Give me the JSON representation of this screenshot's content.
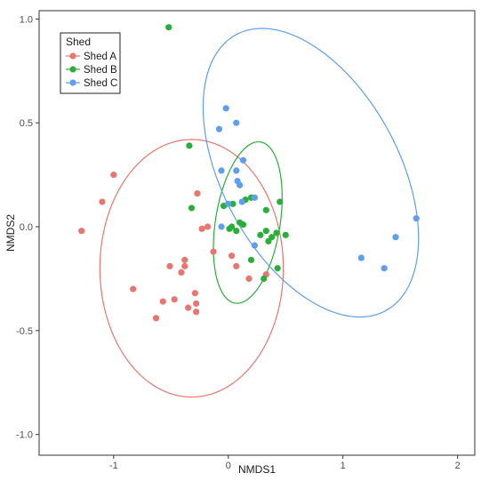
{
  "chart_data": {
    "type": "scatter",
    "xlabel": "NMDS1",
    "ylabel": "NMDS2",
    "xlim": [
      -1.65,
      2.15
    ],
    "ylim": [
      -1.1,
      1.04
    ],
    "xticks": [
      -1,
      0,
      1,
      2
    ],
    "yticks": [
      -1.0,
      -0.5,
      0.0,
      0.5,
      1.0
    ],
    "xtick_labels": [
      "-1",
      "0",
      "1",
      "2"
    ],
    "ytick_labels": [
      "-1.0",
      "-0.5",
      "0.0",
      "0.5",
      "1.0"
    ],
    "grid": false,
    "legend": {
      "title": "Shed",
      "position": "top-left"
    },
    "series": [
      {
        "name": "Shed A",
        "color": "#E8766E",
        "points": [
          [
            -1.28,
            -0.02
          ],
          [
            -1.1,
            0.12
          ],
          [
            -1.0,
            0.25
          ],
          [
            -0.83,
            -0.3
          ],
          [
            -0.63,
            -0.44
          ],
          [
            -0.57,
            -0.36
          ],
          [
            -0.51,
            -0.19
          ],
          [
            -0.47,
            -0.35
          ],
          [
            -0.41,
            -0.22
          ],
          [
            -0.38,
            -0.19
          ],
          [
            -0.38,
            -0.16
          ],
          [
            -0.35,
            -0.39
          ],
          [
            -0.29,
            -0.32
          ],
          [
            -0.28,
            -0.37
          ],
          [
            -0.28,
            -0.41
          ],
          [
            -0.27,
            0.16
          ],
          [
            -0.23,
            -0.01
          ],
          [
            -0.18,
            0.0
          ],
          [
            -0.13,
            -0.12
          ],
          [
            0.03,
            -0.14
          ],
          [
            0.07,
            -0.19
          ],
          [
            0.18,
            -0.25
          ],
          [
            0.33,
            -0.23
          ]
        ],
        "ellipse": {
          "cx": -0.32,
          "cy": -0.2,
          "rx": 0.8,
          "ry": 0.62,
          "angle_deg": 0
        }
      },
      {
        "name": "Shed B",
        "color": "#2AAE3A",
        "points": [
          [
            -0.52,
            0.96
          ],
          [
            -0.34,
            0.39
          ],
          [
            -0.32,
            0.09
          ],
          [
            -0.04,
            0.1
          ],
          [
            0.01,
            -0.01
          ],
          [
            0.03,
            0.0
          ],
          [
            0.04,
            0.11
          ],
          [
            0.07,
            -0.02
          ],
          [
            0.1,
            0.02
          ],
          [
            0.13,
            0.01
          ],
          [
            0.15,
            0.13
          ],
          [
            0.2,
            0.14
          ],
          [
            0.2,
            -0.16
          ],
          [
            0.28,
            -0.04
          ],
          [
            0.31,
            -0.25
          ],
          [
            0.33,
            -0.02
          ],
          [
            0.33,
            0.08
          ],
          [
            0.35,
            -0.07
          ],
          [
            0.38,
            -0.05
          ],
          [
            0.42,
            -0.03
          ],
          [
            0.43,
            -0.2
          ],
          [
            0.45,
            0.12
          ],
          [
            0.5,
            -0.04
          ]
        ],
        "ellipse": {
          "cx": 0.17,
          "cy": 0.02,
          "rx": 0.27,
          "ry": 0.41,
          "angle_deg": -25
        }
      },
      {
        "name": "Shed C",
        "color": "#5E9DF0",
        "points": [
          [
            -0.08,
            0.47
          ],
          [
            -0.06,
            0.27
          ],
          [
            -0.06,
            0.0
          ],
          [
            -0.02,
            0.57
          ],
          [
            0.0,
            0.11
          ],
          [
            0.07,
            0.5
          ],
          [
            0.07,
            0.27
          ],
          [
            0.08,
            0.22
          ],
          [
            0.1,
            0.2
          ],
          [
            0.12,
            0.12
          ],
          [
            0.13,
            0.32
          ],
          [
            0.23,
            -0.09
          ],
          [
            0.23,
            0.14
          ],
          [
            1.16,
            -0.15
          ],
          [
            1.36,
            -0.2
          ],
          [
            1.46,
            -0.05
          ],
          [
            1.64,
            0.04
          ]
        ],
        "ellipse": {
          "cx": 0.72,
          "cy": 0.26,
          "rx": 1.02,
          "ry": 0.57,
          "angle_deg": -28
        }
      }
    ]
  }
}
